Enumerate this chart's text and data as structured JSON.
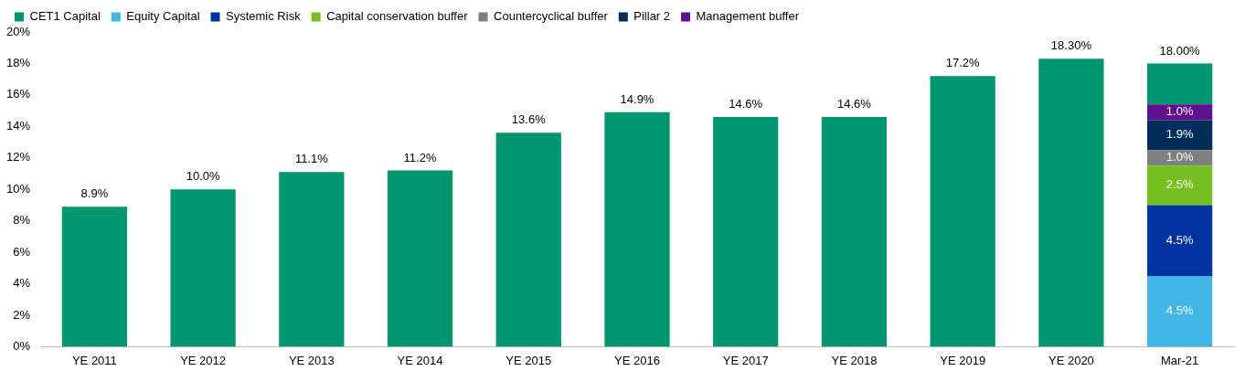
{
  "chart_data": {
    "type": "bar",
    "stacked": true,
    "legend": "top",
    "grid": false,
    "categories": [
      "YE 2011",
      "YE 2012",
      "YE 2013",
      "YE 2014",
      "YE 2015",
      "YE 2016",
      "YE 2017",
      "YE 2018",
      "YE 2019",
      "YE 2020",
      "Mar-21"
    ],
    "ylim": [
      0,
      20
    ],
    "yticks": [
      {
        "value": 0,
        "label": "0%"
      },
      {
        "value": 2,
        "label": "2%"
      },
      {
        "value": 4,
        "label": "4%"
      },
      {
        "value": 6,
        "label": "6%"
      },
      {
        "value": 8,
        "label": "8%"
      },
      {
        "value": 10,
        "label": "10%"
      },
      {
        "value": 12,
        "label": "12%"
      },
      {
        "value": 14,
        "label": "14%"
      },
      {
        "value": 16,
        "label": "16%"
      },
      {
        "value": 18,
        "label": "18%"
      },
      {
        "value": 20,
        "label": "20%"
      }
    ],
    "series": [
      {
        "name": "Equity Capital",
        "color": "#41b6e6",
        "values": [
          null,
          null,
          null,
          null,
          null,
          null,
          null,
          null,
          null,
          null,
          4.5
        ],
        "value_labels": [
          null,
          null,
          null,
          null,
          null,
          null,
          null,
          null,
          null,
          null,
          "4.5%"
        ]
      },
      {
        "name": "Systemic Risk",
        "color": "#0033a0",
        "values": [
          null,
          null,
          null,
          null,
          null,
          null,
          null,
          null,
          null,
          null,
          4.5
        ],
        "value_labels": [
          null,
          null,
          null,
          null,
          null,
          null,
          null,
          null,
          null,
          null,
          "4.5%"
        ]
      },
      {
        "name": "Capital conservation buffer",
        "color": "#78be20",
        "values": [
          null,
          null,
          null,
          null,
          null,
          null,
          null,
          null,
          null,
          null,
          2.5
        ],
        "value_labels": [
          null,
          null,
          null,
          null,
          null,
          null,
          null,
          null,
          null,
          null,
          "2.5%"
        ]
      },
      {
        "name": "Countercyclical buffer",
        "color": "#7f7f7f",
        "values": [
          null,
          null,
          null,
          null,
          null,
          null,
          null,
          null,
          null,
          null,
          1.0
        ],
        "value_labels": [
          null,
          null,
          null,
          null,
          null,
          null,
          null,
          null,
          null,
          null,
          "1.0%"
        ]
      },
      {
        "name": "Pillar 2",
        "color": "#002d5a",
        "values": [
          null,
          null,
          null,
          null,
          null,
          null,
          null,
          null,
          null,
          null,
          1.9
        ],
        "value_labels": [
          null,
          null,
          null,
          null,
          null,
          null,
          null,
          null,
          null,
          null,
          "1.9%"
        ]
      },
      {
        "name": "Management buffer",
        "color": "#5f0f8f",
        "values": [
          null,
          null,
          null,
          null,
          null,
          null,
          null,
          null,
          null,
          null,
          1.0
        ],
        "value_labels": [
          null,
          null,
          null,
          null,
          null,
          null,
          null,
          null,
          null,
          null,
          "1.0%"
        ]
      },
      {
        "name": "CET1 Capital",
        "color": "#00966f",
        "values": [
          8.9,
          10.0,
          11.1,
          11.2,
          13.6,
          14.9,
          14.6,
          14.6,
          17.2,
          18.3,
          2.6
        ]
      }
    ],
    "totals": [
      "8.9%",
      "10.0%",
      "11.1%",
      "11.2%",
      "13.6%",
      "14.9%",
      "14.6%",
      "14.6%",
      "17.2%",
      "18.30%",
      "18.00%"
    ]
  }
}
